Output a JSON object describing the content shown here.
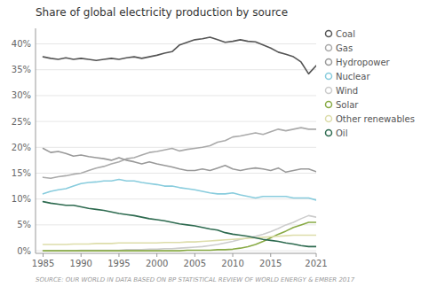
{
  "chart_data": {
    "type": "line",
    "title": "Share of global electricity production by source",
    "source": "SOURCE: OUR WORLD IN DATA BASED ON BP STATISTICAL REVIEW OF WORLD ENERGY & EMBER 2017",
    "x": [
      1985,
      1986,
      1987,
      1988,
      1989,
      1990,
      1991,
      1992,
      1993,
      1994,
      1995,
      1996,
      1997,
      1998,
      1999,
      2000,
      2001,
      2002,
      2003,
      2004,
      2005,
      2006,
      2007,
      2008,
      2009,
      2010,
      2011,
      2012,
      2013,
      2014,
      2015,
      2016,
      2017,
      2018,
      2019,
      2020,
      2021
    ],
    "series": [
      {
        "name": "Coal",
        "color": "#555555",
        "values": [
          37.5,
          37.2,
          37.0,
          37.3,
          37.0,
          37.2,
          37.0,
          36.8,
          37.0,
          37.2,
          37.0,
          37.3,
          37.5,
          37.2,
          37.5,
          37.8,
          38.2,
          38.5,
          39.8,
          40.3,
          40.8,
          41.0,
          41.3,
          40.8,
          40.3,
          40.5,
          40.8,
          40.5,
          40.4,
          39.8,
          39.2,
          38.4,
          38.0,
          37.5,
          36.5,
          34.2,
          35.8
        ]
      },
      {
        "name": "Gas",
        "color": "#aaaaaa",
        "values": [
          14.2,
          14.0,
          14.3,
          14.5,
          14.8,
          15.0,
          15.5,
          16.0,
          16.3,
          16.8,
          17.2,
          17.8,
          18.0,
          18.5,
          19.0,
          19.2,
          19.5,
          19.8,
          19.3,
          19.6,
          19.8,
          20.0,
          20.3,
          21.0,
          21.3,
          22.0,
          22.2,
          22.5,
          22.8,
          22.5,
          23.0,
          23.5,
          23.2,
          23.5,
          23.8,
          23.5,
          23.5
        ]
      },
      {
        "name": "Hydropower",
        "color": "#999999",
        "values": [
          19.8,
          19.0,
          19.2,
          18.8,
          18.3,
          18.5,
          18.2,
          18.0,
          17.8,
          17.5,
          18.0,
          17.5,
          17.2,
          16.8,
          17.2,
          16.8,
          16.5,
          16.2,
          15.8,
          15.5,
          15.5,
          15.8,
          15.5,
          16.0,
          16.5,
          15.8,
          15.5,
          15.8,
          16.0,
          15.8,
          15.5,
          16.0,
          15.2,
          15.5,
          15.8,
          15.8,
          15.3
        ]
      },
      {
        "name": "Nuclear",
        "color": "#88ccdd",
        "values": [
          11.0,
          11.5,
          11.8,
          12.0,
          12.5,
          13.0,
          13.2,
          13.3,
          13.5,
          13.5,
          13.8,
          13.5,
          13.5,
          13.2,
          13.0,
          12.8,
          12.5,
          12.5,
          12.2,
          12.0,
          11.8,
          11.5,
          11.2,
          11.0,
          11.0,
          11.2,
          10.8,
          10.5,
          10.2,
          10.5,
          10.5,
          10.5,
          10.5,
          10.2,
          10.2,
          10.2,
          9.8
        ]
      },
      {
        "name": "Wind",
        "color": "#cccccc",
        "values": [
          0.0,
          0.0,
          0.0,
          0.0,
          0.0,
          0.1,
          0.1,
          0.1,
          0.1,
          0.1,
          0.1,
          0.2,
          0.2,
          0.2,
          0.3,
          0.3,
          0.4,
          0.4,
          0.5,
          0.6,
          0.7,
          0.8,
          1.0,
          1.2,
          1.5,
          1.8,
          2.2,
          2.5,
          2.8,
          3.2,
          3.7,
          4.3,
          5.0,
          5.5,
          6.2,
          6.8,
          6.5
        ]
      },
      {
        "name": "Solar",
        "color": "#88aa44",
        "values": [
          0.0,
          0.0,
          0.0,
          0.0,
          0.0,
          0.0,
          0.0,
          0.0,
          0.0,
          0.0,
          0.0,
          0.0,
          0.0,
          0.0,
          0.0,
          0.0,
          0.0,
          0.0,
          0.0,
          0.1,
          0.1,
          0.1,
          0.1,
          0.2,
          0.2,
          0.3,
          0.5,
          0.8,
          1.2,
          1.8,
          2.5,
          3.2,
          3.8,
          4.5,
          5.0,
          5.5,
          5.5
        ]
      },
      {
        "name": "Other renewables",
        "color": "#ddddaa",
        "values": [
          1.2,
          1.2,
          1.2,
          1.2,
          1.3,
          1.3,
          1.3,
          1.4,
          1.4,
          1.4,
          1.5,
          1.5,
          1.5,
          1.5,
          1.5,
          1.5,
          1.6,
          1.6,
          1.6,
          1.7,
          1.7,
          1.8,
          1.9,
          2.0,
          2.1,
          2.2,
          2.3,
          2.4,
          2.5,
          2.6,
          2.7,
          2.8,
          2.9,
          3.0,
          3.0,
          3.0,
          3.0
        ]
      },
      {
        "name": "Oil",
        "color": "#2d6a4f",
        "values": [
          9.5,
          9.2,
          9.0,
          8.8,
          8.8,
          8.5,
          8.2,
          8.0,
          7.8,
          7.5,
          7.2,
          7.0,
          6.8,
          6.5,
          6.2,
          6.0,
          5.8,
          5.5,
          5.2,
          5.0,
          4.8,
          4.5,
          4.2,
          4.0,
          3.5,
          3.2,
          3.0,
          2.8,
          2.5,
          2.2,
          2.0,
          1.8,
          1.5,
          1.3,
          1.0,
          0.8,
          0.8
        ]
      }
    ],
    "xlim": [
      1984,
      2021
    ],
    "xticks": [
      1985,
      1990,
      1995,
      2000,
      2005,
      2010,
      2015,
      2021
    ],
    "ylim": [
      -0.5,
      43
    ],
    "yticks": [
      {
        "value": 0,
        "label": "0%"
      },
      {
        "value": 5,
        "label": "5%"
      },
      {
        "value": 10,
        "label": "10%"
      },
      {
        "value": 15,
        "label": "15%"
      },
      {
        "value": 20,
        "label": "20%"
      },
      {
        "value": 25,
        "label": "25%"
      },
      {
        "value": 30,
        "label": "30%"
      },
      {
        "value": 35,
        "label": "35%"
      },
      {
        "value": 40,
        "label": "40%"
      }
    ],
    "grid": true,
    "legend": "right"
  }
}
